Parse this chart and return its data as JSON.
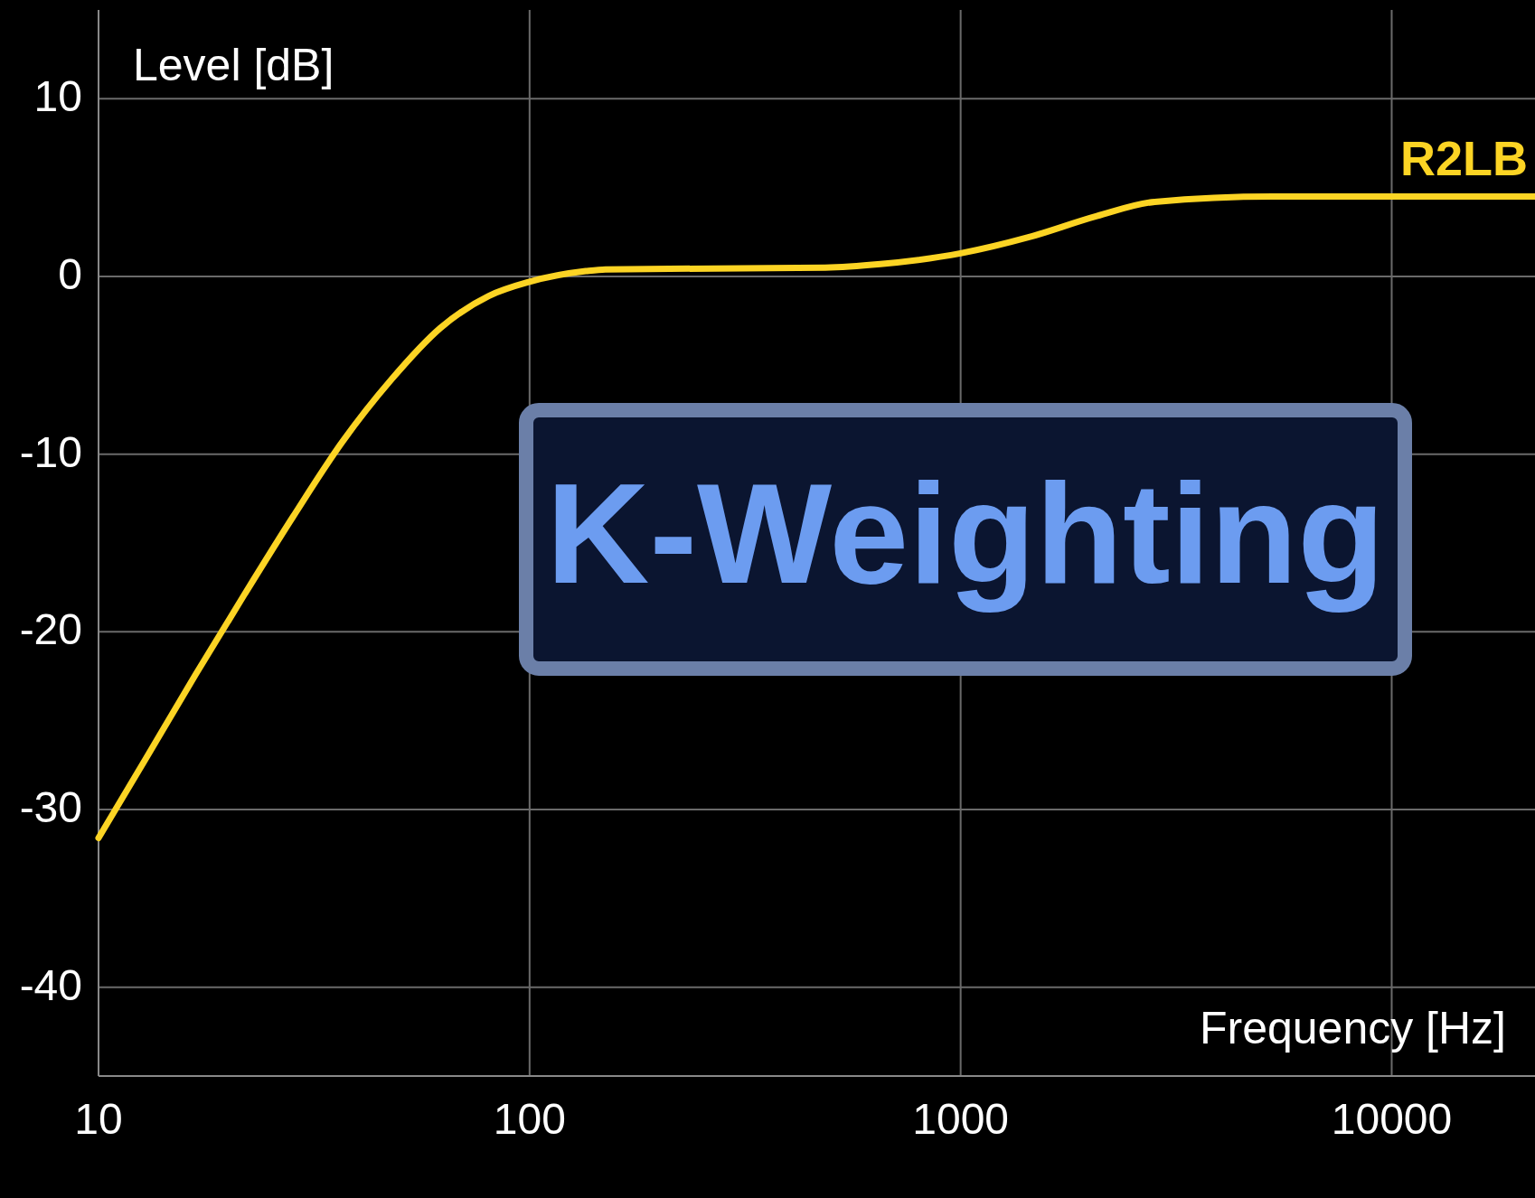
{
  "chart_data": {
    "type": "line",
    "title": "K-Weighting",
    "xlabel": "Frequency [Hz]",
    "ylabel": "Level [dB]",
    "log": "x",
    "xlim": [
      10,
      21500
    ],
    "ylim": [
      -45,
      15
    ],
    "xticks": [
      10,
      100,
      1000,
      10000
    ],
    "yticks": [
      -40,
      -30,
      -20,
      -10,
      0,
      10
    ],
    "grid": true,
    "marker": "none",
    "line_style": "solid",
    "series": [
      {
        "name": "R2LB",
        "color": "#fcd424",
        "x": [
          10,
          12.9,
          16.8,
          21.8,
          28.3,
          36.8,
          47.8,
          62.1,
          80.4,
          100,
          135,
          150,
          485,
          652,
          1000,
          1435,
          2070,
          2820,
          5310,
          21500
        ],
        "values": [
          -31.6,
          -27.1,
          -22.4,
          -17.9,
          -13.5,
          -9.3,
          -5.8,
          -2.9,
          -1.1,
          -0.3,
          0.3,
          0.4,
          0.5,
          0.7,
          1.3,
          2.2,
          3.4,
          4.2,
          4.5,
          4.5
        ]
      }
    ]
  }
}
